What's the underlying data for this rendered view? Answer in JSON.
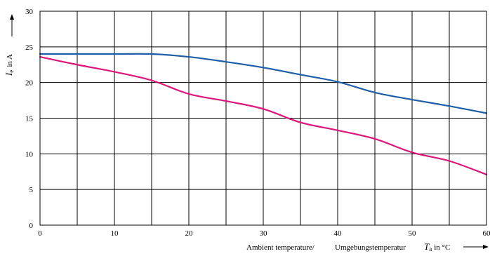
{
  "chart_data": {
    "type": "line",
    "title": "",
    "xlabel_prefix": "Ambient temperature/",
    "xlabel_german": "Umgebungstemperatur",
    "xlabel_symbol": "T",
    "xlabel_subscript": "a",
    "xlabel_unit": "in °C",
    "ylabel_symbol": "I",
    "ylabel_subscript": "e",
    "ylabel_unit": "in A",
    "xlim": [
      0,
      60
    ],
    "ylim": [
      0,
      30
    ],
    "x_ticks": [
      0,
      10,
      20,
      30,
      40,
      50,
      60
    ],
    "y_ticks": [
      0,
      5,
      10,
      15,
      20,
      25,
      30
    ],
    "x_grid_step": 5,
    "y_grid_step": 5,
    "grid": true,
    "series": [
      {
        "color": "#1f5fa8",
        "x": [
          0,
          5,
          10,
          15,
          20,
          25,
          30,
          35,
          40,
          45,
          50,
          55,
          60
        ],
        "y": [
          24,
          24,
          24,
          24,
          23.6,
          22.9,
          22.1,
          21.1,
          20.1,
          18.6,
          17.6,
          16.7,
          15.7
        ]
      },
      {
        "color": "#e0157a",
        "x": [
          0,
          5,
          10,
          15,
          20,
          25,
          30,
          35,
          40,
          45,
          50,
          55,
          60
        ],
        "y": [
          23.6,
          22.5,
          21.5,
          20.3,
          18.4,
          17.4,
          16.3,
          14.4,
          13.3,
          12.1,
          10.2,
          9.0,
          7.1
        ]
      }
    ]
  }
}
